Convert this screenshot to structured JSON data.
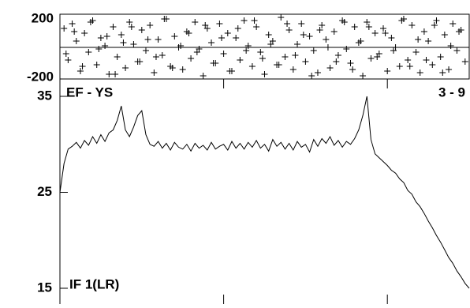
{
  "chart_data": [
    {
      "type": "scatter",
      "color": "#000000",
      "ylim": [
        -200,
        200
      ],
      "yticks": [
        -200,
        200
      ],
      "xlim": [
        0,
        100
      ],
      "xticks": [
        40,
        80
      ],
      "reference_line": 0,
      "x": [
        1,
        2,
        3,
        4,
        5,
        6,
        7,
        8,
        9,
        10,
        11,
        12,
        13,
        14,
        15,
        16,
        17,
        18,
        19,
        20,
        21,
        22,
        23,
        24,
        25,
        26,
        27,
        28,
        29,
        30,
        31,
        32,
        33,
        34,
        35,
        36,
        37,
        38,
        39,
        40,
        41,
        42,
        43,
        44,
        45,
        46,
        47,
        48,
        49,
        50,
        51,
        52,
        53,
        54,
        55,
        56,
        57,
        58,
        59,
        60,
        61,
        62,
        63,
        64,
        65,
        66,
        67,
        68,
        69,
        70,
        71,
        72,
        73,
        74,
        75,
        76,
        77,
        78,
        79,
        80,
        81,
        82,
        83,
        84,
        85,
        86,
        87,
        88,
        89,
        90,
        91,
        92,
        93,
        94,
        95,
        96,
        97,
        98,
        99,
        1.5,
        3.5,
        5.5,
        7.5,
        9.5,
        11.5,
        13.5,
        15.5,
        17.5,
        19.5,
        21.5,
        23.5,
        25.5,
        27.5,
        29.5,
        31.5,
        33.5,
        35.5,
        37.5,
        39.5,
        41.5,
        43.5,
        45.5,
        47.5,
        49.5,
        51.5,
        53.5,
        55.5,
        57.5,
        59.5,
        61.5,
        63.5,
        65.5,
        67.5,
        69.5,
        71.5,
        73.5,
        75.5,
        77.5,
        79.5,
        81.5,
        83.5,
        85.5,
        87.5,
        89.5,
        91.5,
        93.5,
        95.5,
        97.5
      ],
      "values": [
        120,
        -80,
        150,
        40,
        -150,
        90,
        -30,
        170,
        -110,
        60,
        10,
        -170,
        130,
        -60,
        80,
        -130,
        160,
        20,
        -90,
        110,
        -20,
        140,
        -160,
        50,
        -50,
        180,
        -120,
        70,
        0,
        -140,
        100,
        -70,
        160,
        -10,
        -180,
        120,
        30,
        -100,
        150,
        -40,
        90,
        -150,
        60,
        -80,
        170,
        10,
        -120,
        130,
        -30,
        -170,
        80,
        40,
        -110,
        190,
        -60,
        110,
        -140,
        20,
        150,
        -90,
        70,
        -20,
        -160,
        140,
        50,
        -130,
        100,
        -50,
        170,
        -10,
        -100,
        130,
        30,
        -180,
        160,
        -70,
        90,
        -40,
        120,
        -150,
        60,
        0,
        -120,
        180,
        -80,
        140,
        -30,
        -160,
        100,
        40,
        -110,
        170,
        -60,
        80,
        -140,
        150,
        -20,
        110,
        -90,
        -40,
        100,
        -120,
        160,
        -10,
        70,
        -170,
        30,
        130,
        -90,
        50,
        -60,
        180,
        -130,
        10,
        90,
        -30,
        140,
        -100,
        60,
        -150,
        120,
        -20,
        170,
        -70,
        20,
        -110,
        150,
        -50,
        80,
        -180,
        110,
        0,
        -90,
        160,
        -140,
        40,
        130,
        -60,
        90,
        -20,
        170,
        -120,
        50,
        -80,
        140,
        -160,
        10,
        100
      ]
    },
    {
      "type": "line",
      "color": "#000000",
      "ylim": [
        15,
        35
      ],
      "yticks": [
        15,
        25,
        35
      ],
      "xlim": [
        0,
        100
      ],
      "xticks": [
        40,
        80
      ],
      "annotations": [
        "EF - YS",
        "3 - 9",
        "IF 1(LR)"
      ],
      "x": [
        0,
        1,
        2,
        3,
        4,
        5,
        6,
        7,
        8,
        9,
        10,
        11,
        12,
        13,
        14,
        15,
        16,
        17,
        18,
        19,
        20,
        21,
        22,
        23,
        24,
        25,
        26,
        27,
        28,
        29,
        30,
        31,
        32,
        33,
        34,
        35,
        36,
        37,
        38,
        39,
        40,
        41,
        42,
        43,
        44,
        45,
        46,
        47,
        48,
        49,
        50,
        51,
        52,
        53,
        54,
        55,
        56,
        57,
        58,
        59,
        60,
        61,
        62,
        63,
        64,
        65,
        66,
        67,
        68,
        69,
        70,
        71,
        72,
        73,
        74,
        75,
        76,
        77,
        78,
        79,
        80,
        81,
        82,
        83,
        84,
        85,
        86,
        87,
        88,
        89,
        90,
        91,
        92,
        93,
        94,
        95,
        96,
        97,
        98,
        99,
        100
      ],
      "values": [
        25,
        28,
        29.5,
        29.8,
        30.2,
        29.6,
        30.4,
        29.9,
        30.8,
        30.1,
        31.0,
        30.3,
        31.2,
        31.5,
        32.5,
        34.0,
        31.5,
        30.8,
        31.8,
        33.0,
        33.5,
        31.0,
        30.0,
        29.8,
        30.3,
        29.6,
        30.1,
        29.4,
        30.2,
        29.7,
        29.5,
        30.0,
        29.3,
        30.1,
        29.6,
        29.9,
        29.4,
        30.2,
        29.5,
        29.8,
        30.0,
        29.4,
        30.3,
        29.6,
        30.1,
        29.5,
        30.2,
        29.7,
        30.4,
        29.6,
        30.0,
        29.3,
        30.5,
        29.8,
        30.2,
        29.5,
        30.1,
        29.4,
        30.3,
        29.7,
        30.0,
        29.2,
        30.5,
        29.8,
        30.6,
        30.1,
        30.8,
        29.9,
        30.4,
        29.7,
        30.3,
        30.0,
        30.6,
        31.5,
        33.0,
        35.0,
        30.5,
        29.0,
        28.6,
        28.2,
        27.8,
        27.3,
        27.0,
        26.4,
        26.0,
        25.2,
        24.8,
        24.0,
        23.5,
        22.8,
        22.0,
        21.3,
        20.5,
        19.8,
        19.0,
        18.2,
        17.6,
        16.8,
        16.2,
        15.5,
        15.0
      ]
    }
  ]
}
